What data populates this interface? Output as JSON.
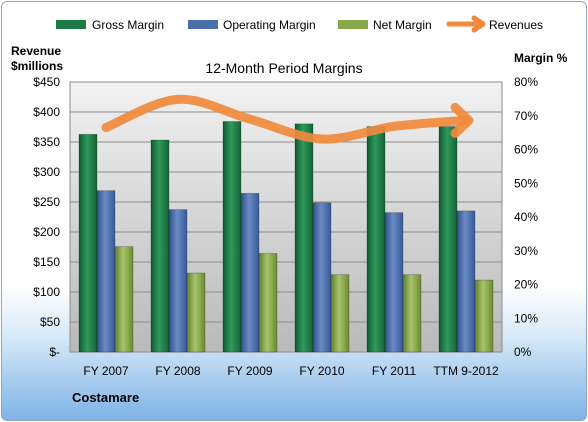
{
  "chart_data": {
    "type": "bar",
    "title": "12-Month Period Margins",
    "company": "Costamare",
    "y_left_label_line1": "Revenue",
    "y_left_label_line2": "$millions",
    "y_right_label": "Margin %",
    "categories": [
      "FY 2007",
      "FY 2008",
      "FY 2009",
      "FY 2010",
      "FY 2011",
      "TTM 9-2012"
    ],
    "y_left_ticks": [
      "$-",
      "$50",
      "$100",
      "$150",
      "$200",
      "$250",
      "$300",
      "$350",
      "$400",
      "$450"
    ],
    "y_right_ticks": [
      "0%",
      "10%",
      "20%",
      "30%",
      "40%",
      "50%",
      "60%",
      "70%",
      "80%"
    ],
    "ylim_left": [
      0,
      450
    ],
    "ylim_right": [
      0,
      80
    ],
    "grid": true,
    "legend_position": "top",
    "series": [
      {
        "name": "Gross Margin",
        "axis": "right",
        "color": "#1e7a45",
        "values": [
          64.5,
          62.8,
          68.3,
          67.6,
          66.8,
          66.8
        ]
      },
      {
        "name": "Operating Margin",
        "axis": "right",
        "color": "#4a6fad",
        "values": [
          47.8,
          42.2,
          47.0,
          44.2,
          41.3,
          41.8
        ]
      },
      {
        "name": "Net Margin",
        "axis": "right",
        "color": "#87a94a",
        "values": [
          31.2,
          23.4,
          29.2,
          22.9,
          22.9,
          21.3
        ]
      },
      {
        "name": "Revenues",
        "axis": "left",
        "color": "#f08a3c",
        "values": [
          374,
          421,
          388,
          355,
          376,
          386
        ]
      }
    ]
  }
}
